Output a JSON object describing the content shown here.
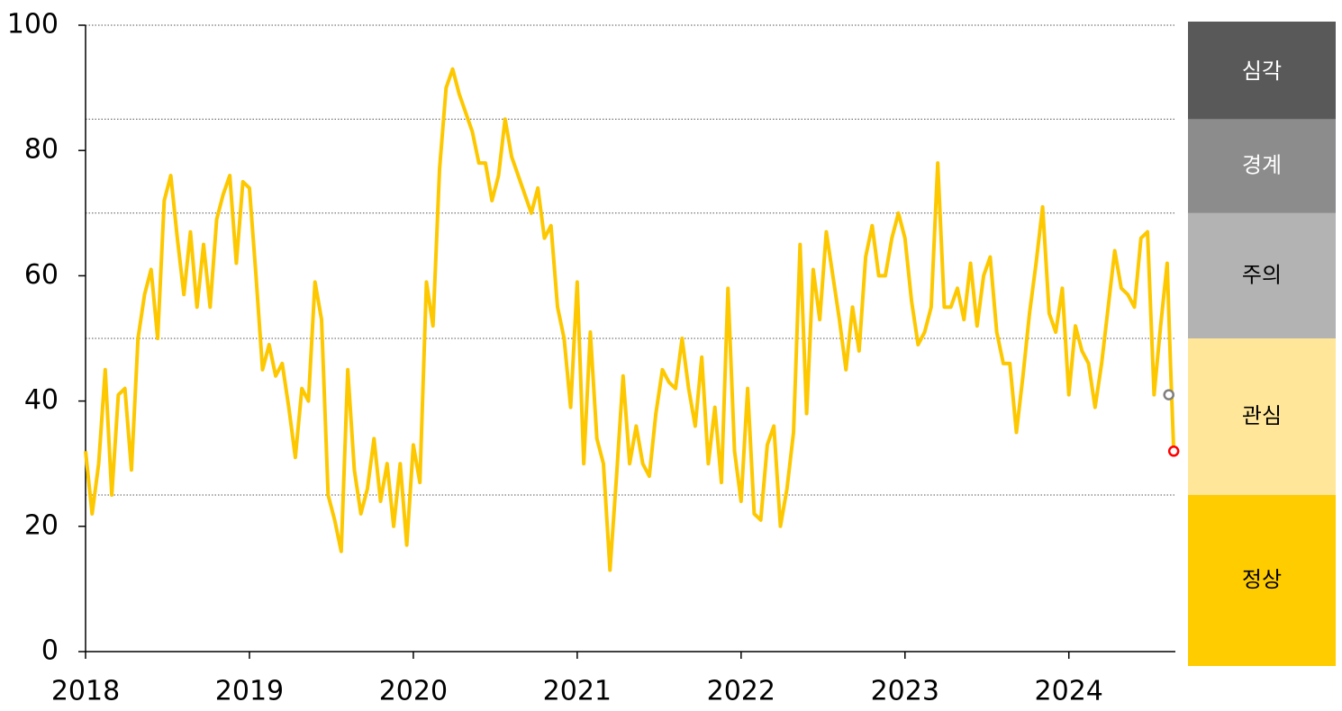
{
  "chart_data": {
    "type": "line",
    "color": "#fdc800",
    "xlim": [
      2018,
      2024.65
    ],
    "xticks": [
      2018,
      2019,
      2020,
      2021,
      2022,
      2023,
      2024
    ],
    "ylim": [
      0,
      100
    ],
    "yticks": [
      0,
      20,
      40,
      60,
      80,
      100
    ],
    "x": [
      2018,
      2018.04,
      2018.08,
      2018.12,
      2018.16,
      2018.2,
      2018.24,
      2018.28,
      2018.32,
      2018.36,
      2018.4,
      2018.44,
      2018.48,
      2018.52,
      2018.56,
      2018.6,
      2018.64,
      2018.68,
      2018.72,
      2018.76,
      2018.8,
      2018.84,
      2018.88,
      2018.92,
      2018.96,
      2019,
      2019.04,
      2019.08,
      2019.12,
      2019.16,
      2019.2,
      2019.24,
      2019.28,
      2019.32,
      2019.36,
      2019.4,
      2019.44,
      2019.48,
      2019.52,
      2019.56,
      2019.6,
      2019.64,
      2019.68,
      2019.72,
      2019.76,
      2019.8,
      2019.84,
      2019.88,
      2019.92,
      2019.96,
      2020,
      2020.04,
      2020.08,
      2020.12,
      2020.16,
      2020.2,
      2020.24,
      2020.28,
      2020.32,
      2020.36,
      2020.4,
      2020.44,
      2020.48,
      2020.52,
      2020.56,
      2020.6,
      2020.64,
      2020.68,
      2020.72,
      2020.76,
      2020.8,
      2020.84,
      2020.88,
      2020.92,
      2020.96,
      2021,
      2021.04,
      2021.08,
      2021.12,
      2021.16,
      2021.2,
      2021.24,
      2021.28,
      2021.32,
      2021.36,
      2021.4,
      2021.44,
      2021.48,
      2021.52,
      2021.56,
      2021.6,
      2021.64,
      2021.68,
      2021.72,
      2021.76,
      2021.8,
      2021.84,
      2021.88,
      2021.92,
      2021.96,
      2022,
      2022.04,
      2022.08,
      2022.12,
      2022.16,
      2022.2,
      2022.24,
      2022.28,
      2022.32,
      2022.36,
      2022.4,
      2022.44,
      2022.48,
      2022.52,
      2022.56,
      2022.6,
      2022.64,
      2022.68,
      2022.72,
      2022.76,
      2022.8,
      2022.84,
      2022.88,
      2022.92,
      2022.96,
      2023,
      2023.04,
      2023.08,
      2023.12,
      2023.16,
      2023.2,
      2023.24,
      2023.28,
      2023.32,
      2023.36,
      2023.4,
      2023.44,
      2023.48,
      2023.52,
      2023.56,
      2023.6,
      2023.64,
      2023.68,
      2023.72,
      2023.76,
      2023.8,
      2023.84,
      2023.88,
      2023.92,
      2023.96,
      2024,
      2024.04,
      2024.08,
      2024.12,
      2024.16,
      2024.2,
      2024.24,
      2024.28,
      2024.32,
      2024.36,
      2024.4,
      2024.44,
      2024.48,
      2024.52,
      2024.56,
      2024.6,
      2024.62,
      2024.64
    ],
    "values": [
      32,
      22,
      30,
      45,
      25,
      41,
      42,
      29,
      50,
      57,
      61,
      50,
      72,
      76,
      66,
      57,
      67,
      55,
      65,
      55,
      69,
      73,
      76,
      62,
      75,
      74,
      60,
      45,
      49,
      44,
      46,
      39,
      31,
      42,
      40,
      59,
      53,
      25,
      21,
      16,
      45,
      29,
      22,
      26,
      34,
      24,
      30,
      20,
      30,
      17,
      33,
      27,
      59,
      52,
      77,
      90,
      93,
      89,
      86,
      83,
      78,
      78,
      72,
      76,
      85,
      79,
      76,
      73,
      70,
      74,
      66,
      68,
      55,
      50,
      39,
      59,
      30,
      51,
      34,
      30,
      13,
      28,
      44,
      30,
      36,
      30,
      28,
      38,
      45,
      43,
      42,
      50,
      42,
      36,
      47,
      30,
      39,
      27,
      58,
      32,
      24,
      42,
      22,
      21,
      33,
      36,
      20,
      26,
      35,
      65,
      38,
      61,
      53,
      67,
      60,
      53,
      45,
      55,
      48,
      63,
      68,
      60,
      60,
      66,
      70,
      66,
      56,
      49,
      51,
      55,
      78,
      55,
      55,
      58,
      53,
      62,
      52,
      60,
      63,
      51,
      46,
      46,
      35,
      44,
      54,
      62,
      71,
      54,
      51,
      58,
      41,
      52,
      48,
      46,
      39,
      46,
      55,
      64,
      58,
      57,
      55,
      66,
      67,
      41,
      52,
      62,
      46,
      32
    ],
    "markers": [
      {
        "x": 2024.61,
        "value": 41,
        "color": "#7f7f7f"
      },
      {
        "x": 2024.64,
        "value": 32,
        "color": "#ff0000"
      }
    ],
    "bands": [
      {
        "label": "정상",
        "from": 0,
        "to": 25,
        "color": "#ffcc00",
        "text_color": "#000000"
      },
      {
        "label": "관심",
        "from": 25,
        "to": 50,
        "color": "#ffe699",
        "text_color": "#000000"
      },
      {
        "label": "주의",
        "from": 50,
        "to": 70,
        "color": "#b3b3b3",
        "text_color": "#000000"
      },
      {
        "label": "경계",
        "from": 70,
        "to": 85,
        "color": "#8c8c8c",
        "text_color": "#ffffff"
      },
      {
        "label": "심각",
        "from": 85,
        "to": 100,
        "color": "#595959",
        "text_color": "#ffffff"
      }
    ]
  }
}
